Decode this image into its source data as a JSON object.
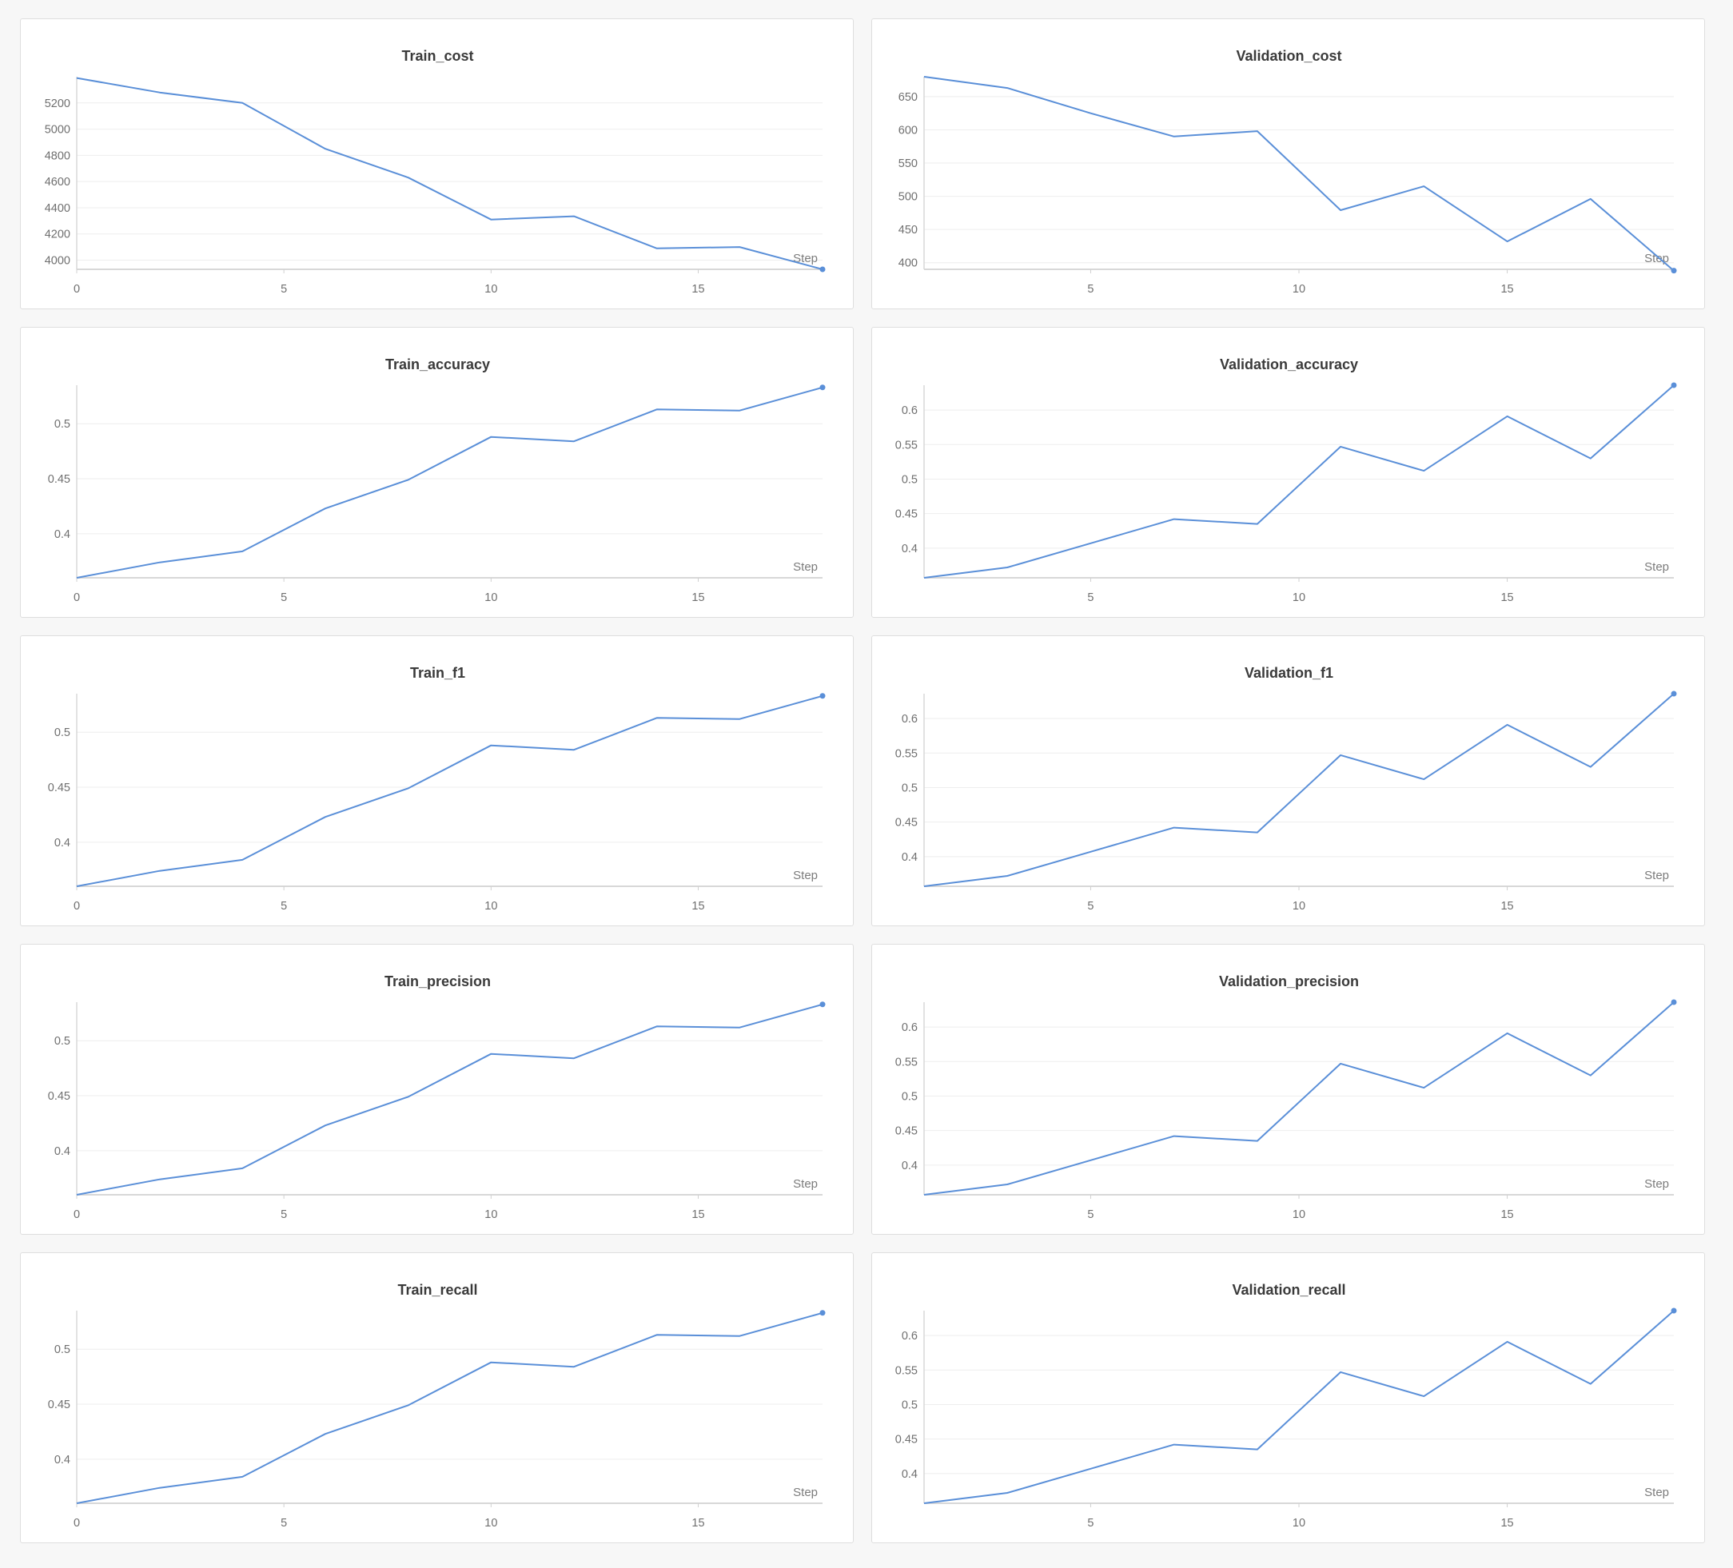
{
  "chart_data": [
    {
      "type": "line",
      "title": "Train_cost",
      "xlabel": "Step",
      "ylabel": "",
      "x_ticks": [
        0,
        5,
        10,
        15
      ],
      "y_ticks": [
        4000,
        4200,
        4400,
        4600,
        4800,
        5000,
        5200
      ],
      "xlim": [
        0,
        18
      ],
      "ylim": [
        3930,
        5400
      ],
      "x_axis_hidden_before_first_tick": false,
      "grid": true,
      "series": [
        {
          "x": [
            0,
            2,
            4,
            6,
            8,
            10,
            12,
            14,
            16,
            18
          ],
          "y": [
            5390,
            5280,
            5200,
            4850,
            4630,
            4310,
            4335,
            4090,
            4100,
            3930
          ]
        }
      ],
      "color": "#5a8fd8"
    },
    {
      "type": "line",
      "title": "Validation_cost",
      "xlabel": "Step",
      "ylabel": "",
      "x_ticks": [
        5,
        10,
        15
      ],
      "y_ticks": [
        400,
        450,
        500,
        550,
        600,
        650
      ],
      "xlim": [
        1,
        19
      ],
      "ylim": [
        390,
        680
      ],
      "x_axis_hidden_before_first_tick": false,
      "grid": true,
      "series": [
        {
          "x": [
            1,
            3,
            5,
            7,
            9,
            11,
            13,
            15,
            17,
            19
          ],
          "y": [
            680,
            663,
            625,
            590,
            598,
            479,
            515,
            432,
            496,
            388
          ]
        }
      ],
      "color": "#5a8fd8"
    },
    {
      "type": "line",
      "title": "Train_accuracy",
      "xlabel": "Step",
      "ylabel": "",
      "x_ticks": [
        0,
        5,
        10,
        15
      ],
      "y_ticks": [
        0.4,
        0.45,
        0.5
      ],
      "xlim": [
        0,
        18
      ],
      "ylim": [
        0.36,
        0.535
      ],
      "grid": true,
      "series": [
        {
          "x": [
            0,
            2,
            4,
            6,
            8,
            10,
            12,
            14,
            16,
            18
          ],
          "y": [
            0.36,
            0.374,
            0.384,
            0.423,
            0.449,
            0.488,
            0.484,
            0.513,
            0.512,
            0.533
          ]
        }
      ],
      "color": "#5a8fd8"
    },
    {
      "type": "line",
      "title": "Validation_accuracy",
      "xlabel": "Step",
      "ylabel": "",
      "x_ticks": [
        5,
        10,
        15
      ],
      "y_ticks": [
        0.4,
        0.45,
        0.5,
        0.55,
        0.6
      ],
      "xlim": [
        1,
        19
      ],
      "ylim": [
        0.357,
        0.636
      ],
      "grid": true,
      "series": [
        {
          "x": [
            1,
            3,
            5,
            7,
            9,
            11,
            13,
            15,
            17,
            19
          ],
          "y": [
            0.357,
            0.372,
            0.407,
            0.442,
            0.435,
            0.547,
            0.512,
            0.591,
            0.53,
            0.636
          ]
        }
      ],
      "color": "#5a8fd8"
    },
    {
      "type": "line",
      "title": "Train_f1",
      "xlabel": "Step",
      "ylabel": "",
      "x_ticks": [
        0,
        5,
        10,
        15
      ],
      "y_ticks": [
        0.4,
        0.45,
        0.5
      ],
      "xlim": [
        0,
        18
      ],
      "ylim": [
        0.36,
        0.535
      ],
      "grid": true,
      "series": [
        {
          "x": [
            0,
            2,
            4,
            6,
            8,
            10,
            12,
            14,
            16,
            18
          ],
          "y": [
            0.36,
            0.374,
            0.384,
            0.423,
            0.449,
            0.488,
            0.484,
            0.513,
            0.512,
            0.533
          ]
        }
      ],
      "color": "#5a8fd8"
    },
    {
      "type": "line",
      "title": "Validation_f1",
      "xlabel": "Step",
      "ylabel": "",
      "x_ticks": [
        5,
        10,
        15
      ],
      "y_ticks": [
        0.4,
        0.45,
        0.5,
        0.55,
        0.6
      ],
      "xlim": [
        1,
        19
      ],
      "ylim": [
        0.357,
        0.636
      ],
      "grid": true,
      "series": [
        {
          "x": [
            1,
            3,
            5,
            7,
            9,
            11,
            13,
            15,
            17,
            19
          ],
          "y": [
            0.357,
            0.372,
            0.407,
            0.442,
            0.435,
            0.547,
            0.512,
            0.591,
            0.53,
            0.636
          ]
        }
      ],
      "color": "#5a8fd8"
    },
    {
      "type": "line",
      "title": "Train_precision",
      "xlabel": "Step",
      "ylabel": "",
      "x_ticks": [
        0,
        5,
        10,
        15
      ],
      "y_ticks": [
        0.4,
        0.45,
        0.5
      ],
      "xlim": [
        0,
        18
      ],
      "ylim": [
        0.36,
        0.535
      ],
      "grid": true,
      "series": [
        {
          "x": [
            0,
            2,
            4,
            6,
            8,
            10,
            12,
            14,
            16,
            18
          ],
          "y": [
            0.36,
            0.374,
            0.384,
            0.423,
            0.449,
            0.488,
            0.484,
            0.513,
            0.512,
            0.533
          ]
        }
      ],
      "color": "#5a8fd8"
    },
    {
      "type": "line",
      "title": "Validation_precision",
      "xlabel": "Step",
      "ylabel": "",
      "x_ticks": [
        5,
        10,
        15
      ],
      "y_ticks": [
        0.4,
        0.45,
        0.5,
        0.55,
        0.6
      ],
      "xlim": [
        1,
        19
      ],
      "ylim": [
        0.357,
        0.636
      ],
      "grid": true,
      "series": [
        {
          "x": [
            1,
            3,
            5,
            7,
            9,
            11,
            13,
            15,
            17,
            19
          ],
          "y": [
            0.357,
            0.372,
            0.407,
            0.442,
            0.435,
            0.547,
            0.512,
            0.591,
            0.53,
            0.636
          ]
        }
      ],
      "color": "#5a8fd8"
    },
    {
      "type": "line",
      "title": "Train_recall",
      "xlabel": "Step",
      "ylabel": "",
      "x_ticks": [
        0,
        5,
        10,
        15
      ],
      "y_ticks": [
        0.4,
        0.45,
        0.5
      ],
      "xlim": [
        0,
        18
      ],
      "ylim": [
        0.36,
        0.535
      ],
      "grid": true,
      "series": [
        {
          "x": [
            0,
            2,
            4,
            6,
            8,
            10,
            12,
            14,
            16,
            18
          ],
          "y": [
            0.36,
            0.374,
            0.384,
            0.423,
            0.449,
            0.488,
            0.484,
            0.513,
            0.512,
            0.533
          ]
        }
      ],
      "color": "#5a8fd8"
    },
    {
      "type": "line",
      "title": "Validation_recall",
      "xlabel": "Step",
      "ylabel": "",
      "x_ticks": [
        5,
        10,
        15
      ],
      "y_ticks": [
        0.4,
        0.45,
        0.5,
        0.55,
        0.6
      ],
      "xlim": [
        1,
        19
      ],
      "ylim": [
        0.357,
        0.636
      ],
      "grid": true,
      "series": [
        {
          "x": [
            1,
            3,
            5,
            7,
            9,
            11,
            13,
            15,
            17,
            19
          ],
          "y": [
            0.357,
            0.372,
            0.407,
            0.442,
            0.435,
            0.547,
            0.512,
            0.591,
            0.53,
            0.636
          ]
        }
      ],
      "color": "#5a8fd8"
    }
  ]
}
